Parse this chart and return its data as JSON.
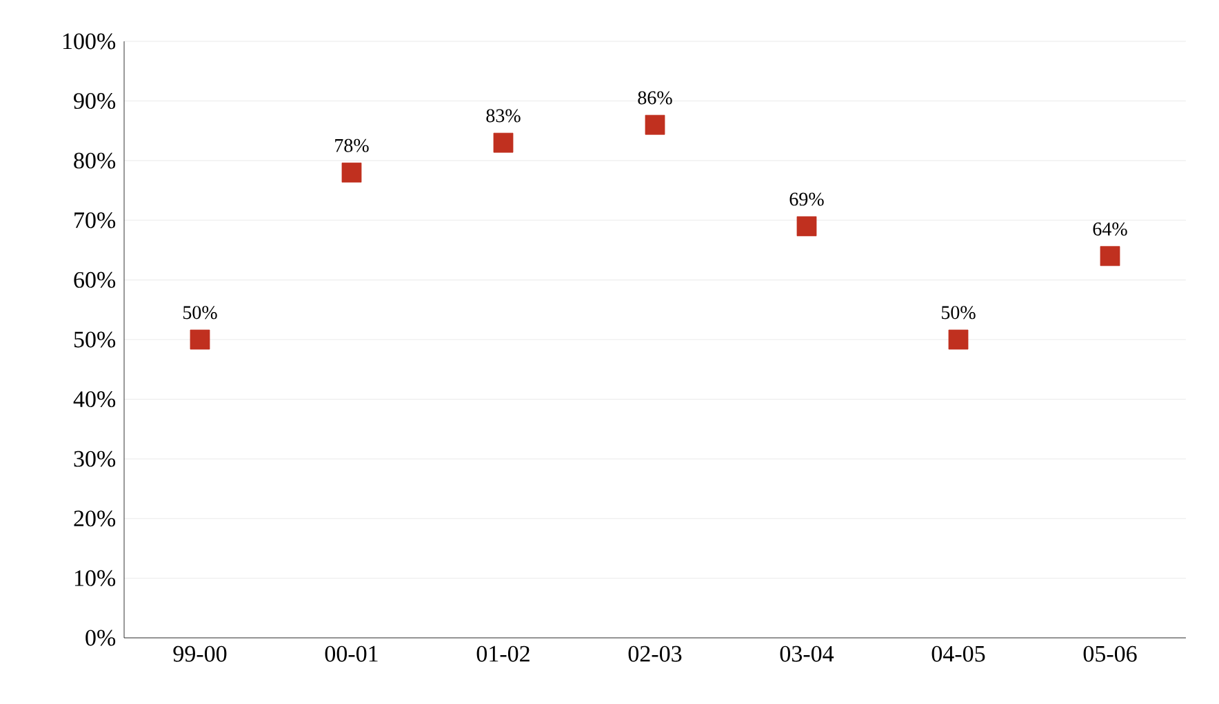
{
  "chart_data": {
    "type": "scatter",
    "categories": [
      "99-00",
      "00-01",
      "01-02",
      "02-03",
      "03-04",
      "04-05",
      "05-06"
    ],
    "series": [
      {
        "color": "#c0301f",
        "values": [
          50,
          78,
          83,
          86,
          69,
          50,
          64
        ],
        "value_labels": [
          "50%",
          "78%",
          "83%",
          "86%",
          "69%",
          "50%",
          "64%"
        ]
      }
    ],
    "marker": "square",
    "grid": "y",
    "ylim": [
      0,
      100
    ],
    "yticks": [
      {
        "value": 0,
        "label": "0%"
      },
      {
        "value": 10,
        "label": "10%"
      },
      {
        "value": 20,
        "label": "20%"
      },
      {
        "value": 30,
        "label": "30%"
      },
      {
        "value": 40,
        "label": "40%"
      },
      {
        "value": 50,
        "label": "50%"
      },
      {
        "value": 60,
        "label": "60%"
      },
      {
        "value": 70,
        "label": "70%"
      },
      {
        "value": 80,
        "label": "80%"
      },
      {
        "value": 90,
        "label": "90%"
      },
      {
        "value": 100,
        "label": "100%"
      }
    ]
  }
}
